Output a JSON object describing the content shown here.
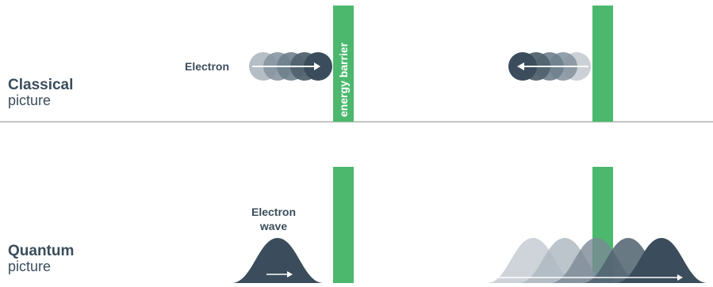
{
  "classical": {
    "title": "Classical",
    "subtitle": "picture",
    "electron_label": "Electron",
    "barrier_label": "energy barrier"
  },
  "quantum": {
    "title": "Quantum",
    "subtitle": "picture",
    "wave_label_line1": "Electron",
    "wave_label_line2": "wave"
  },
  "colors": {
    "barrier": "#4cb86e",
    "electron": "#3b4d5c",
    "electron_faded_1": "#5f6f7c",
    "electron_faded_2": "#8795a1",
    "electron_faded_3": "#adb6bf",
    "electron_faded_4": "#c5ccd2",
    "divider": "#8a8a8a",
    "text": "#3b4d5c"
  }
}
